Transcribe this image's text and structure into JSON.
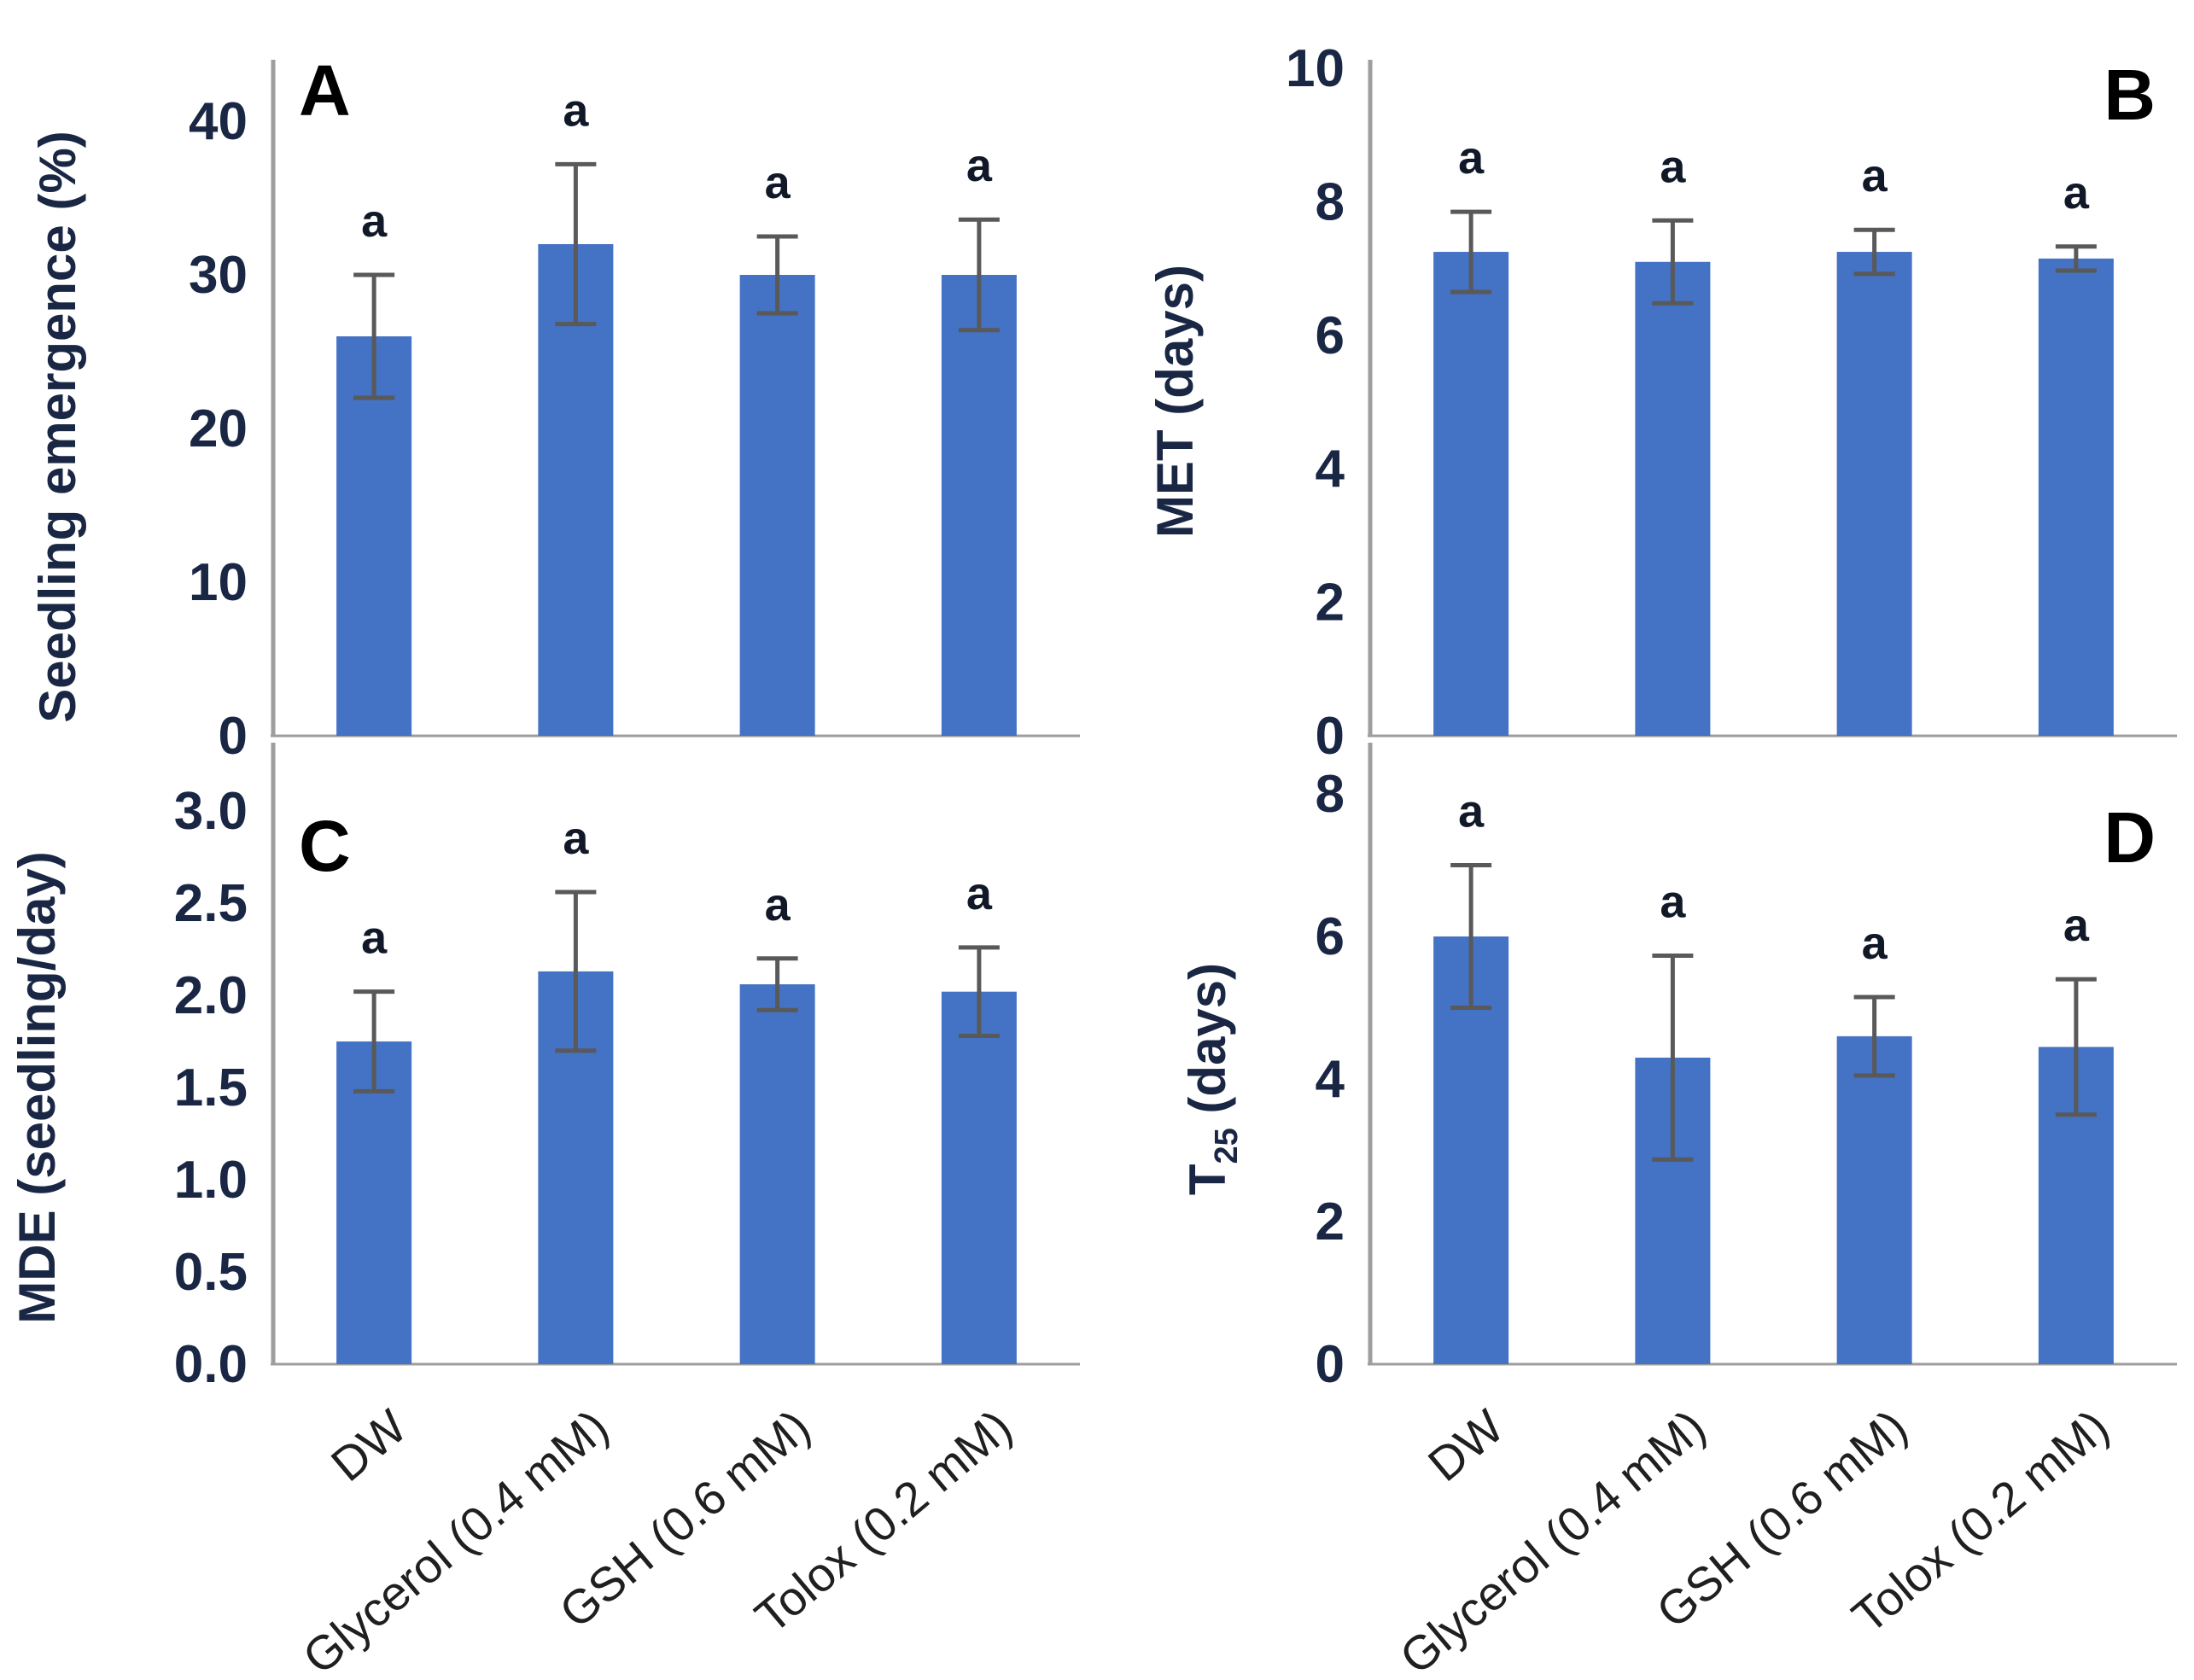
{
  "figure": {
    "kind": "four-panel scientific bar figure",
    "colors": {
      "bar": "#4472C4",
      "error_bar": "#595959",
      "axis_line": "#9E9E9E",
      "tick_text": "#1A2744",
      "sig_text": "#111827",
      "panel_letter": "#000000",
      "xlabel_text": "#1f1f1f"
    }
  },
  "categories": [
    "DW",
    "Glycerol (0.4 mM)",
    "GSH (0.6 mM)",
    "Tolox (0.2 mM)"
  ],
  "chart_data": [
    {
      "type": "bar",
      "panel_letter": "A",
      "panel_letter_position": "top-left",
      "title": "",
      "xlabel": "",
      "ylabel": "Seedling emergence (%)",
      "ylim": [
        0,
        40
      ],
      "yticks": [
        "0",
        "10",
        "20",
        "30",
        "40"
      ],
      "categories": [
        "DW",
        "Glycerol (0.4 mM)",
        "GSH (0.6 mM)",
        "Tolox (0.2 mM)"
      ],
      "values": [
        26,
        32,
        30,
        30
      ],
      "errors": [
        4,
        5.2,
        2.5,
        3.6
      ],
      "point_labels": [
        "a",
        "a",
        "a",
        "a"
      ],
      "grid": false,
      "legend": null,
      "error_bars": true,
      "show_x_tick_labels": false
    },
    {
      "type": "bar",
      "panel_letter": "B",
      "panel_letter_position": "top-right",
      "title": "",
      "xlabel": "",
      "ylabel": "MET (days)",
      "ylim": [
        0,
        10
      ],
      "yticks": [
        "0",
        "2",
        "4",
        "6",
        "8",
        "10"
      ],
      "categories": [
        "DW",
        "Glycerol (0.4 mM)",
        "GSH (0.6 mM)",
        "Tolox (0.2 mM)"
      ],
      "values": [
        7.25,
        7.1,
        7.25,
        7.15
      ],
      "errors": [
        0.6,
        0.62,
        0.33,
        0.18
      ],
      "point_labels": [
        "a",
        "a",
        "a",
        "a"
      ],
      "grid": false,
      "legend": null,
      "error_bars": true,
      "show_x_tick_labels": false
    },
    {
      "type": "bar",
      "panel_letter": "C",
      "panel_letter_position": "top-left",
      "title": "",
      "xlabel": "",
      "ylabel": "MDE (seedling/day)",
      "ylim": [
        0,
        3
      ],
      "yticks": [
        "0.0",
        "0.5",
        "1.0",
        "1.5",
        "2.0",
        "2.5",
        "3.0"
      ],
      "categories": [
        "DW",
        "Glycerol (0.4 mM)",
        "GSH (0.6 mM)",
        "Tolox (0.2 mM)"
      ],
      "values": [
        1.75,
        2.13,
        2.06,
        2.02
      ],
      "errors": [
        0.27,
        0.43,
        0.14,
        0.24
      ],
      "point_labels": [
        "a",
        "a",
        "a",
        "a"
      ],
      "grid": false,
      "legend": null,
      "error_bars": true,
      "show_x_tick_labels": true,
      "xtick_rotation": -40
    },
    {
      "type": "bar",
      "panel_letter": "D",
      "panel_letter_position": "top-right",
      "title": "",
      "xlabel": "",
      "ylabel": "T25 (days)",
      "ylabel_parts": {
        "pre": "T",
        "sub": "25",
        "post": " (days)"
      },
      "ylim": [
        0,
        8
      ],
      "yticks": [
        "0",
        "2",
        "4",
        "6",
        "8"
      ],
      "categories": [
        "DW",
        "Glycerol (0.4 mM)",
        "GSH (0.6 mM)",
        "Tolox (0.2 mM)"
      ],
      "values": [
        6.0,
        4.3,
        4.6,
        4.45
      ],
      "errors": [
        1.0,
        1.43,
        0.55,
        0.95
      ],
      "point_labels": [
        "a",
        "a",
        "a",
        "a"
      ],
      "grid": false,
      "legend": null,
      "error_bars": true,
      "show_x_tick_labels": true,
      "xtick_rotation": -40
    }
  ]
}
